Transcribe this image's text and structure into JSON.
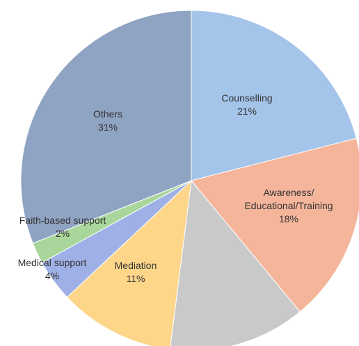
{
  "chart_data": {
    "type": "pie",
    "categories": [
      "Counselling",
      "Awareness/\nEducational/Training",
      null,
      "Mediation",
      "Medical support",
      "Faith-based support",
      "Others"
    ],
    "values": [
      21,
      18,
      13,
      11,
      4,
      2,
      31
    ],
    "value_labels": [
      "21%",
      "18%",
      null,
      "11%",
      "4%",
      "2%",
      "31%"
    ],
    "colors": [
      "#a4c4ea",
      "#f4b59b",
      "#c9c9c9",
      "#fdd68a",
      "#9eb0e6",
      "#a9d79b",
      "#8fa3c3"
    ]
  }
}
